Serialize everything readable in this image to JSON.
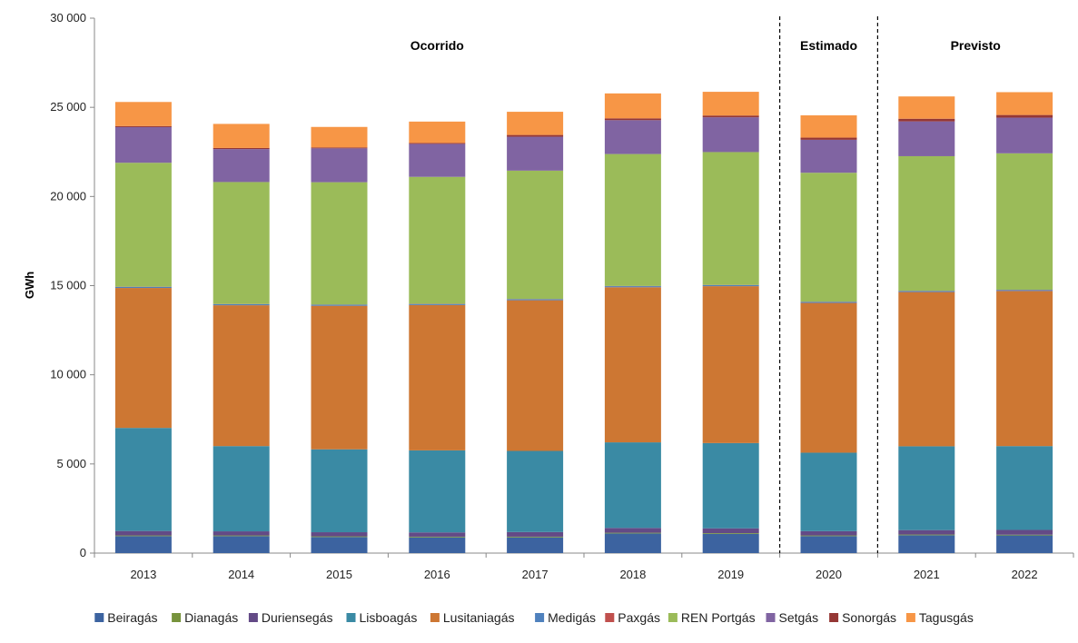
{
  "chart_data": {
    "type": "bar",
    "stacked": true,
    "xlabel": "",
    "ylabel": "GWh",
    "ylim": [
      0,
      30000
    ],
    "yticks": [
      0,
      5000,
      10000,
      15000,
      20000,
      25000,
      30000
    ],
    "ytick_labels": [
      "0",
      "5 000",
      "10 000",
      "15 000",
      "20 000",
      "25 000",
      "30 000"
    ],
    "categories": [
      "2013",
      "2014",
      "2015",
      "2016",
      "2017",
      "2018",
      "2019",
      "2020",
      "2021",
      "2022"
    ],
    "period_labels": [
      {
        "text": "Ocorrido",
        "from": 0,
        "to": 6
      },
      {
        "text": "Estimado",
        "from": 7,
        "to": 7
      },
      {
        "text": "Previsto",
        "from": 8,
        "to": 9
      }
    ],
    "separators_after_index": [
      6,
      7
    ],
    "legend_position": "bottom",
    "grid": false,
    "series": [
      {
        "name": "Beiragás",
        "color": "#3c63a0",
        "values": [
          950,
          950,
          900,
          880,
          880,
          1100,
          1080,
          950,
          1000,
          990
        ]
      },
      {
        "name": "Dianagás",
        "color": "#77933c",
        "values": [
          40,
          40,
          40,
          40,
          40,
          40,
          40,
          40,
          40,
          40
        ]
      },
      {
        "name": "Duriensegás",
        "color": "#634a86",
        "values": [
          250,
          230,
          230,
          240,
          260,
          270,
          270,
          240,
          250,
          270
        ]
      },
      {
        "name": "Lisboagás",
        "color": "#3a8aa4",
        "values": [
          5780,
          4780,
          4650,
          4600,
          4550,
          4800,
          4780,
          4400,
          4700,
          4700
        ]
      },
      {
        "name": "Lusitaniagás",
        "color": "#cd7733",
        "values": [
          7850,
          7900,
          8050,
          8150,
          8450,
          8700,
          8800,
          8400,
          8650,
          8700
        ]
      },
      {
        "name": "Medigás",
        "color": "#4f81bd",
        "values": [
          60,
          60,
          60,
          60,
          60,
          60,
          60,
          60,
          60,
          60
        ]
      },
      {
        "name": "Paxgás",
        "color": "#c0504d",
        "values": [
          10,
          10,
          10,
          10,
          10,
          10,
          10,
          10,
          10,
          10
        ]
      },
      {
        "name": "REN Portgás",
        "color": "#9bbb59",
        "values": [
          6950,
          6840,
          6860,
          7120,
          7200,
          7400,
          7450,
          7230,
          7550,
          7650
        ]
      },
      {
        "name": "Setgás",
        "color": "#8064a2",
        "values": [
          2000,
          1850,
          1900,
          1850,
          1900,
          1900,
          1950,
          1850,
          1950,
          2000
        ]
      },
      {
        "name": "Sonorgás",
        "color": "#953735",
        "values": [
          60,
          60,
          50,
          50,
          100,
          100,
          100,
          120,
          150,
          150
        ]
      },
      {
        "name": "Tagusgás",
        "color": "#f79646",
        "values": [
          1350,
          1350,
          1150,
          1200,
          1300,
          1400,
          1330,
          1250,
          1250,
          1280
        ]
      }
    ]
  }
}
